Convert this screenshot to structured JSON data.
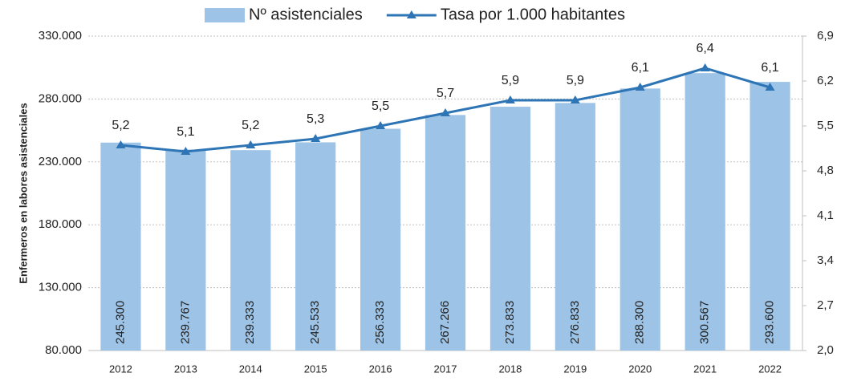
{
  "chart_data": {
    "type": "bar",
    "ylabel": "Enfermeros en labores asistenciales",
    "categories": [
      "2012",
      "2013",
      "2014",
      "2015",
      "2016",
      "2017",
      "2018",
      "2019",
      "2020",
      "2021",
      "2022"
    ],
    "series": [
      {
        "name": "Nº asistenciales",
        "type": "bar",
        "color": "#9dc3e6",
        "values": [
          245300,
          239767,
          239333,
          245533,
          256333,
          267266,
          273833,
          276833,
          288300,
          300567,
          293600
        ],
        "value_labels": [
          "245.300",
          "239.767",
          "239.333",
          "245.533",
          "256.333",
          "267.266",
          "273.833",
          "276.833",
          "288.300",
          "300.567",
          "293.600"
        ]
      },
      {
        "name": "Tasa por 1.000 habitantes",
        "type": "line",
        "axis": "y2",
        "color": "#2e75b6",
        "values": [
          5.2,
          5.1,
          5.2,
          5.3,
          5.5,
          5.7,
          5.9,
          5.9,
          6.1,
          6.4,
          6.1
        ],
        "value_labels": [
          "5,2",
          "5,1",
          "5,2",
          "5,3",
          "5,5",
          "5,7",
          "5,9",
          "5,9",
          "6,1",
          "6,4",
          "6,1"
        ]
      }
    ],
    "ylim": [
      80000,
      330000
    ],
    "yticks": [
      {
        "value": 80000,
        "label": "80.000"
      },
      {
        "value": 130000,
        "label": "130.000"
      },
      {
        "value": 180000,
        "label": "180.000"
      },
      {
        "value": 230000,
        "label": "230.000"
      },
      {
        "value": 280000,
        "label": "280.000"
      },
      {
        "value": 330000,
        "label": "330.000"
      }
    ],
    "y2lim": [
      2.0,
      6.9
    ],
    "y2ticks": [
      {
        "value": 2.0,
        "label": "2,0"
      },
      {
        "value": 2.7,
        "label": "2,7"
      },
      {
        "value": 3.4,
        "label": "3,4"
      },
      {
        "value": 4.1,
        "label": "4,1"
      },
      {
        "value": 4.8,
        "label": "4,8"
      },
      {
        "value": 5.5,
        "label": "5,5"
      },
      {
        "value": 6.2,
        "label": "6,2"
      },
      {
        "value": 6.9,
        "label": "6,9"
      }
    ],
    "grid": true,
    "legend": "top"
  }
}
